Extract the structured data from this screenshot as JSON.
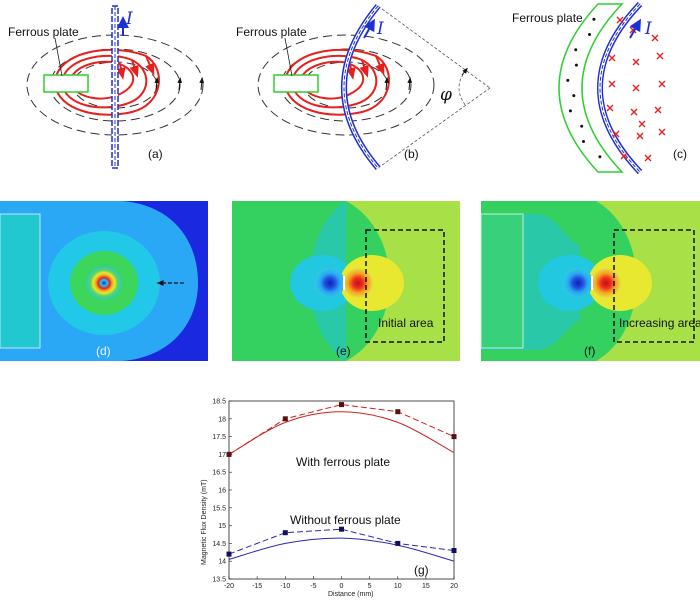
{
  "panels": {
    "a": {
      "label": "(a)",
      "plate_label": "Ferrous plate",
      "current_symbol": "I"
    },
    "b": {
      "label": "(b)",
      "plate_label": "Ferrous plate",
      "current_symbol": "I",
      "angle_symbol": "φ"
    },
    "c": {
      "label": "(c)",
      "plate_label": "Ferrous plate",
      "current_symbol": "I"
    },
    "d": {
      "label": "(d)"
    },
    "e": {
      "label": "(e)",
      "area_label": "Initial area"
    },
    "f": {
      "label": "(f)",
      "area_label": "Increasing area"
    },
    "g": {
      "label": "(g)"
    }
  },
  "colors": {
    "conductor": "#1f2fd6",
    "field_line": "#e8201c",
    "plate_green": "#2ecf2e",
    "field_blue": "#1a28e0",
    "field_light_blue": "#2aa8f5",
    "field_cyan": "#22c8e8",
    "field_green": "#3bd65a",
    "field_yellow": "#d8f030",
    "series_with": "#cc2222",
    "series_without": "#2a2ab8"
  },
  "chart_data": {
    "type": "line",
    "xlabel": "Distance (mm)",
    "ylabel": "Magnetic Flux Density (mT)",
    "xlim": [
      -20,
      20
    ],
    "ylim": [
      13.5,
      18.5
    ],
    "xticks": [
      -20,
      -15,
      -10,
      -5,
      0,
      5,
      10,
      15,
      20
    ],
    "yticks": [
      13.5,
      14,
      14.5,
      15,
      15.5,
      16,
      16.5,
      17,
      17.5,
      18,
      18.5
    ],
    "grid": false,
    "series": [
      {
        "name": "With ferrous plate",
        "color": "#cc2222",
        "measured_x": [
          -20,
          -10,
          0,
          10,
          20
        ],
        "measured_y": [
          17.0,
          18.0,
          18.4,
          18.2,
          17.5
        ],
        "fit_y": [
          17.0,
          17.9,
          18.2,
          17.9,
          17.05
        ]
      },
      {
        "name": "Without ferrous plate",
        "color": "#2a2ab8",
        "measured_x": [
          -20,
          -10,
          0,
          10,
          20
        ],
        "measured_y": [
          14.2,
          14.8,
          14.9,
          14.5,
          14.3
        ],
        "fit_y": [
          14.05,
          14.5,
          14.65,
          14.45,
          14.0
        ]
      }
    ]
  }
}
